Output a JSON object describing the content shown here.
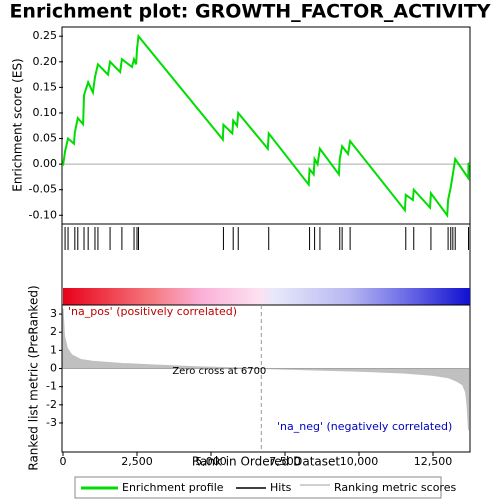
{
  "chart_data": {
    "type": "gsea",
    "title": "Enrichment plot: GROWTH_FACTOR_ACTIVITY",
    "xlabel": "Rank in Ordered Dataset",
    "ylabel": "Enrichment score (ES)",
    "y2label": "Ranked list metric (PreRanked)",
    "xlim": [
      0,
      13750
    ],
    "xticks": [
      0,
      {
        "value": 2500,
        "label": "2,500"
      },
      {
        "value": 5000,
        "label": "5,000"
      },
      {
        "value": 7500,
        "label": "7,500"
      },
      {
        "value": 10000,
        "label": "10,000"
      },
      {
        "value": 12500,
        "label": "12,500"
      }
    ],
    "ylim": [
      -0.117,
      0.268
    ],
    "yticks": [
      {
        "value": -0.1,
        "label": "-0.10"
      },
      -0.05,
      {
        "value": 0,
        "label": "0.00"
      },
      0.05,
      {
        "value": 0.1,
        "label": "0.10"
      },
      0.15,
      {
        "value": 0.2,
        "label": "0.20"
      },
      0.25
    ],
    "y2lim": [
      -4.6,
      3.5
    ],
    "y2ticks": [
      -3,
      -2,
      -1,
      0,
      1,
      2,
      3
    ],
    "es": {
      "name": "Enrichment profile",
      "color": "#00dd00",
      "x": [
        0,
        70,
        170,
        370,
        400,
        500,
        680,
        710,
        850,
        1010,
        1080,
        1180,
        1520,
        1590,
        1930,
        1990,
        2330,
        2400,
        2470,
        2500,
        2550,
        5400,
        5420,
        5720,
        5750,
        5880,
        5920,
        6920,
        6950,
        8300,
        8330,
        8470,
        8500,
        8600,
        8680,
        9320,
        9350,
        9430,
        9630,
        9700,
        11550,
        11580,
        11820,
        11850,
        12400,
        12430,
        12980,
        13010,
        13100,
        13170,
        13250,
        13690,
        13700
      ],
      "values": [
        -0.003,
        0.025,
        0.05,
        0.04,
        0.062,
        0.09,
        0.078,
        0.135,
        0.16,
        0.14,
        0.17,
        0.195,
        0.175,
        0.2,
        0.18,
        0.205,
        0.19,
        0.205,
        0.195,
        0.225,
        0.25,
        0.048,
        0.077,
        0.06,
        0.085,
        0.075,
        0.1,
        0.03,
        0.06,
        -0.04,
        -0.01,
        -0.02,
        0.01,
        0.0,
        0.03,
        -0.02,
        0.01,
        0.035,
        0.02,
        0.045,
        -0.09,
        -0.06,
        -0.07,
        -0.05,
        -0.085,
        -0.057,
        -0.1,
        -0.07,
        -0.045,
        -0.02,
        0.01,
        -0.027,
        0.003
      ]
    },
    "hits": {
      "name": "Hits",
      "color": "#000000",
      "x": [
        70,
        170,
        400,
        500,
        710,
        850,
        1080,
        1180,
        1590,
        1990,
        2400,
        2500,
        2550,
        5420,
        5750,
        5920,
        6950,
        8330,
        8500,
        8680,
        9350,
        9430,
        9700,
        11580,
        11850,
        12430,
        13010,
        13100,
        13170,
        13250,
        13700
      ]
    },
    "metric": {
      "name": "Ranking metric scores",
      "color": "#c0c0c0",
      "x": [
        0,
        50,
        150,
        300,
        600,
        1000,
        2000,
        3000,
        4500,
        6700,
        8500,
        10000,
        11500,
        12500,
        13000,
        13300,
        13500,
        13600,
        13650,
        13700
      ],
      "values": [
        3.3,
        1.8,
        1.1,
        0.75,
        0.5,
        0.4,
        0.28,
        0.2,
        0.1,
        0,
        -0.08,
        -0.15,
        -0.25,
        -0.38,
        -0.5,
        -0.7,
        -0.9,
        -1.3,
        -2,
        -3.4
      ]
    },
    "zero_cross": {
      "value": 6700,
      "label": "Zero cross at 6700"
    },
    "pos_label": "'na_pos' (positively correlated)",
    "neg_label": "'na_neg' (negatively correlated)"
  }
}
